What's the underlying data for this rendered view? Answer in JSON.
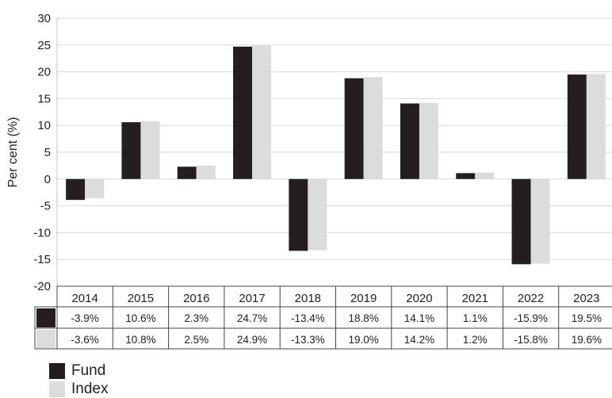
{
  "chart_data": {
    "type": "bar",
    "ylabel": "Per cent (%)",
    "ylim": [
      -20,
      30
    ],
    "yticks": [
      30,
      25,
      20,
      15,
      10,
      5,
      0,
      -5,
      -10,
      -15,
      -20
    ],
    "grid": true,
    "categories": [
      "2014",
      "2015",
      "2016",
      "2017",
      "2018",
      "2019",
      "2020",
      "2021",
      "2022",
      "2023"
    ],
    "series": [
      {
        "name": "Fund",
        "color": "#231f20",
        "values": [
          -3.9,
          10.6,
          2.3,
          24.7,
          -13.4,
          18.8,
          14.1,
          1.1,
          -15.9,
          19.5
        ],
        "labels": [
          "-3.9%",
          "10.6%",
          "2.3%",
          "24.7%",
          "-13.4%",
          "18.8%",
          "14.1%",
          "1.1%",
          "-15.9%",
          "19.5%"
        ]
      },
      {
        "name": "Index",
        "color": "#dcdcdc",
        "values": [
          -3.6,
          10.8,
          2.5,
          24.9,
          -13.3,
          19.0,
          14.2,
          1.2,
          -15.8,
          19.6
        ],
        "labels": [
          "-3.6%",
          "10.8%",
          "2.5%",
          "24.9%",
          "-13.3%",
          "19.0%",
          "14.2%",
          "1.2%",
          "-15.8%",
          "19.6%"
        ]
      }
    ],
    "legend": "bottom-left"
  }
}
